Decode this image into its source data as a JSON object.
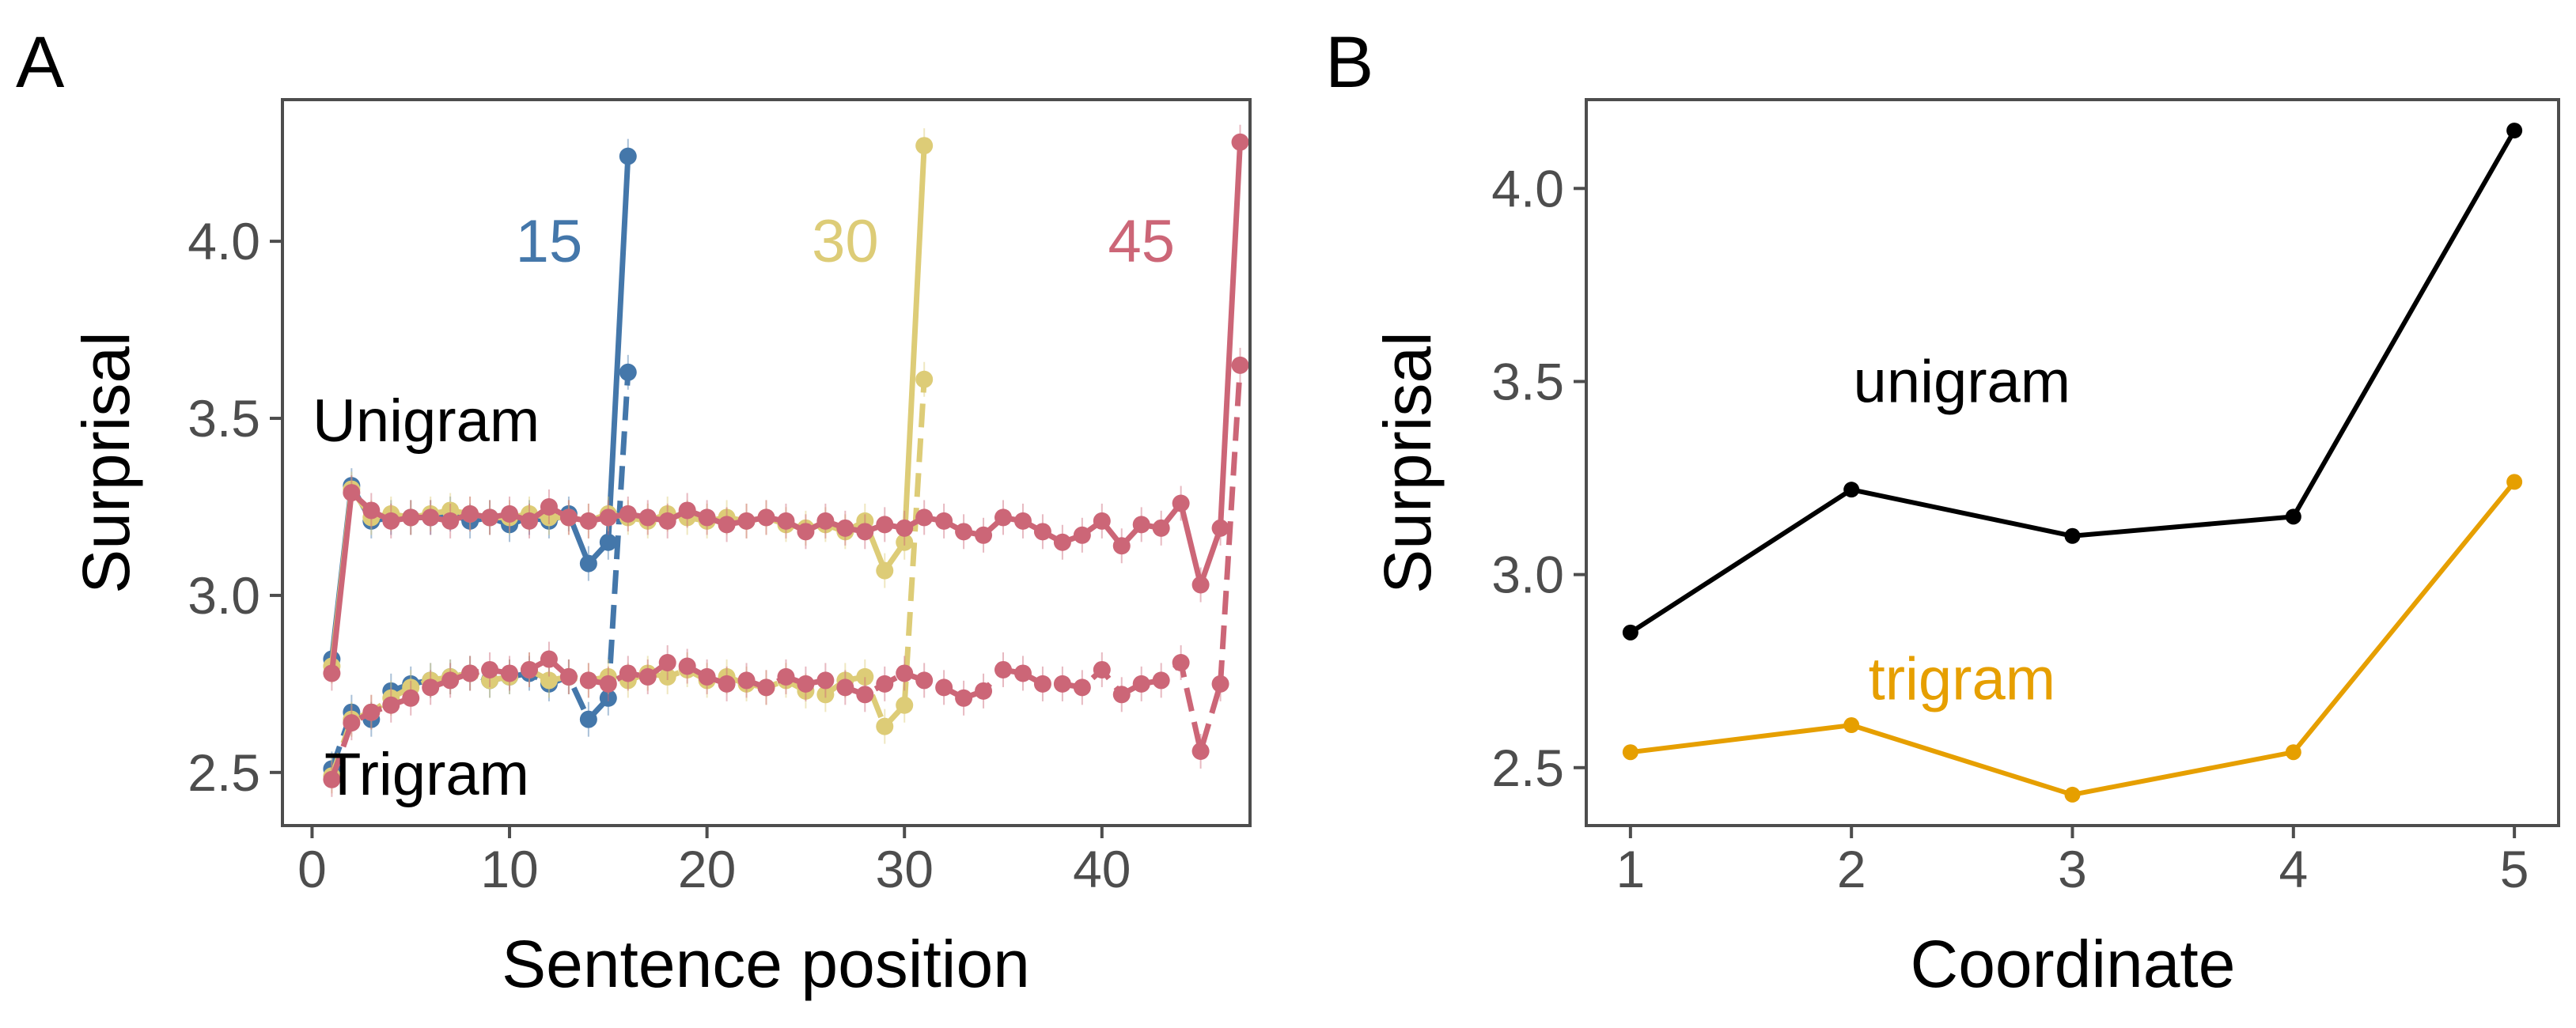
{
  "chart_data": [
    {
      "panel_label": "A",
      "type": "line",
      "xlabel": "Sentence position",
      "ylabel": "Surprisal",
      "xlim": [
        -1.5,
        47.5
      ],
      "ylim": [
        2.35,
        4.4
      ],
      "xticks": [
        0,
        10,
        20,
        30,
        40
      ],
      "yticks": [
        2.5,
        3.0,
        3.5,
        4.0
      ],
      "xtick_labels": [
        "0",
        "10",
        "20",
        "30",
        "40"
      ],
      "ytick_labels": [
        "2.5",
        "3.0",
        "3.5",
        "4.0"
      ],
      "group_labels": {
        "unigram": "Unigram",
        "trigram": "Trigram"
      },
      "series": [
        {
          "name": "15",
          "color": "#4477AA",
          "unigram": [
            2.82,
            3.31,
            3.21,
            3.22,
            3.22,
            3.22,
            3.23,
            3.21,
            3.22,
            3.2,
            3.22,
            3.21,
            3.23,
            3.09,
            3.15,
            4.24
          ],
          "trigram": [
            2.51,
            2.67,
            2.65,
            2.73,
            2.75,
            2.76,
            2.77,
            2.78,
            2.76,
            2.77,
            2.78,
            2.75,
            2.77,
            2.65,
            2.71,
            3.63
          ]
        },
        {
          "name": "30",
          "color": "#DDCC77",
          "unigram": [
            2.8,
            3.3,
            3.22,
            3.23,
            3.22,
            3.23,
            3.24,
            3.23,
            3.22,
            3.22,
            3.23,
            3.22,
            3.22,
            3.21,
            3.23,
            3.22,
            3.21,
            3.23,
            3.22,
            3.21,
            3.22,
            3.21,
            3.22,
            3.2,
            3.19,
            3.2,
            3.18,
            3.21,
            3.07,
            3.15,
            4.27
          ],
          "trigram": [
            2.49,
            2.65,
            2.67,
            2.71,
            2.74,
            2.76,
            2.77,
            2.78,
            2.76,
            2.77,
            2.79,
            2.76,
            2.77,
            2.76,
            2.77,
            2.76,
            2.78,
            2.77,
            2.79,
            2.76,
            2.77,
            2.75,
            2.74,
            2.76,
            2.73,
            2.72,
            2.76,
            2.77,
            2.63,
            2.69,
            3.61
          ]
        },
        {
          "name": "45",
          "color": "#CC6677",
          "unigram": [
            2.78,
            3.29,
            3.24,
            3.21,
            3.22,
            3.22,
            3.21,
            3.23,
            3.22,
            3.23,
            3.21,
            3.25,
            3.22,
            3.21,
            3.22,
            3.23,
            3.22,
            3.21,
            3.24,
            3.22,
            3.2,
            3.21,
            3.22,
            3.21,
            3.18,
            3.21,
            3.19,
            3.18,
            3.2,
            3.19,
            3.22,
            3.21,
            3.18,
            3.17,
            3.22,
            3.21,
            3.18,
            3.15,
            3.17,
            3.21,
            3.14,
            3.2,
            3.19,
            3.26,
            3.03,
            3.19,
            4.28
          ],
          "trigram": [
            2.48,
            2.64,
            2.67,
            2.69,
            2.71,
            2.74,
            2.76,
            2.78,
            2.79,
            2.78,
            2.79,
            2.82,
            2.77,
            2.76,
            2.75,
            2.78,
            2.77,
            2.81,
            2.8,
            2.77,
            2.75,
            2.76,
            2.74,
            2.77,
            2.75,
            2.76,
            2.74,
            2.72,
            2.75,
            2.78,
            2.76,
            2.74,
            2.71,
            2.73,
            2.79,
            2.78,
            2.75,
            2.75,
            2.74,
            2.79,
            2.72,
            2.75,
            2.76,
            2.81,
            2.56,
            2.75,
            3.65
          ]
        }
      ],
      "series_labels": [
        {
          "text": "15",
          "x": 12.0,
          "y": 4.0,
          "color": "#4477AA"
        },
        {
          "text": "30",
          "x": 27.0,
          "y": 4.0,
          "color": "#DDCC77"
        },
        {
          "text": "45",
          "x": 42.0,
          "y": 4.0,
          "color": "#CC6677"
        }
      ]
    },
    {
      "panel_label": "B",
      "type": "line",
      "xlabel": "Coordinate",
      "ylabel": "Surprisal",
      "xlim": [
        0.8,
        5.2
      ],
      "ylim": [
        2.35,
        4.23
      ],
      "xticks": [
        1,
        2,
        3,
        4,
        5
      ],
      "yticks": [
        2.5,
        3.0,
        3.5,
        4.0
      ],
      "xtick_labels": [
        "1",
        "2",
        "3",
        "4",
        "5"
      ],
      "ytick_labels": [
        "2.5",
        "3.0",
        "3.5",
        "4.0"
      ],
      "series": [
        {
          "name": "unigram",
          "color": "#000000",
          "x": [
            1,
            2,
            3,
            4,
            5
          ],
          "values": [
            2.85,
            3.22,
            3.1,
            3.15,
            4.15
          ]
        },
        {
          "name": "trigram",
          "color": "#E69F00",
          "x": [
            1,
            2,
            3,
            4,
            5
          ],
          "values": [
            2.54,
            2.61,
            2.43,
            2.54,
            3.24
          ]
        }
      ],
      "series_labels": [
        {
          "text": "unigram",
          "x": 2.5,
          "y": 3.5,
          "color": "#000000"
        },
        {
          "text": "trigram",
          "x": 2.5,
          "y": 2.73,
          "color": "#E69F00"
        }
      ]
    }
  ]
}
